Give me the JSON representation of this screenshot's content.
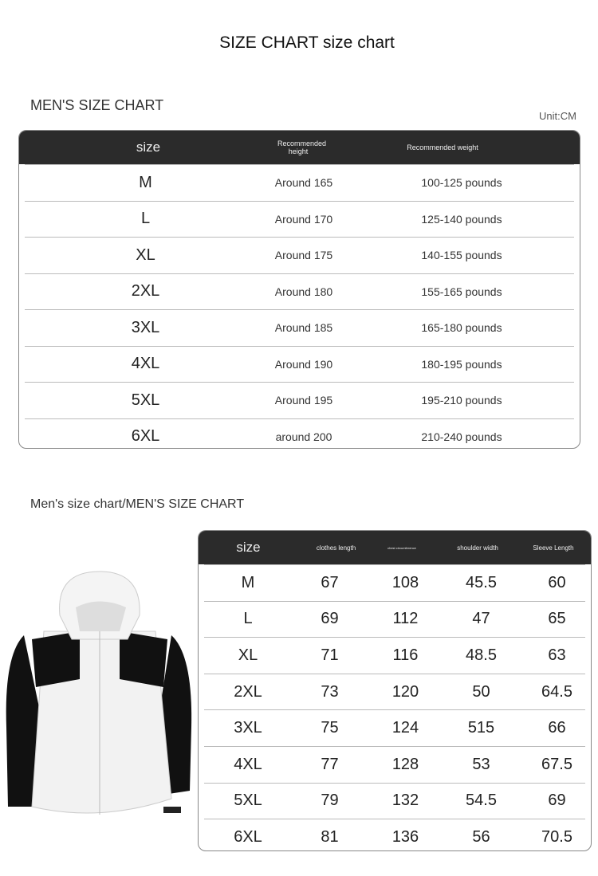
{
  "title": "SIZE CHART size chart",
  "section1": {
    "title": "MEN'S SIZE CHART",
    "unit": "Unit:CM",
    "headers": [
      "size",
      "Recommended height",
      "Recommended weight"
    ],
    "rows": [
      [
        "M",
        "Around 165",
        "100-125 pounds"
      ],
      [
        "L",
        "Around 170",
        "125-140 pounds"
      ],
      [
        "XL",
        "Around 175",
        "140-155 pounds"
      ],
      [
        "2XL",
        "Around 180",
        "155-165 pounds"
      ],
      [
        "3XL",
        "Around 185",
        "165-180 pounds"
      ],
      [
        "4XL",
        "Around 190",
        "180-195 pounds"
      ],
      [
        "5XL",
        "Around 195",
        "195-210 pounds"
      ],
      [
        "6XL",
        "around 200",
        "210-240 pounds"
      ]
    ]
  },
  "section2": {
    "title": "Men's size chart/MEN'S SIZE CHART",
    "headers": [
      "size",
      "clothes length",
      "chest circumference",
      "shoulder width",
      "Sleeve Length"
    ],
    "rows": [
      [
        "M",
        "67",
        "108",
        "45.5",
        "60"
      ],
      [
        "L",
        "69",
        "112",
        "47",
        "65"
      ],
      [
        "XL",
        "71",
        "116",
        "48.5",
        "63"
      ],
      [
        "2XL",
        "73",
        "120",
        "50",
        "64.5"
      ],
      [
        "3XL",
        "75",
        "124",
        "515",
        "66"
      ],
      [
        "4XL",
        "77",
        "128",
        "53",
        "67.5"
      ],
      [
        "5XL",
        "79",
        "132",
        "54.5",
        "69"
      ],
      [
        "6XL",
        "81",
        "136",
        "56",
        "70.5"
      ]
    ]
  }
}
